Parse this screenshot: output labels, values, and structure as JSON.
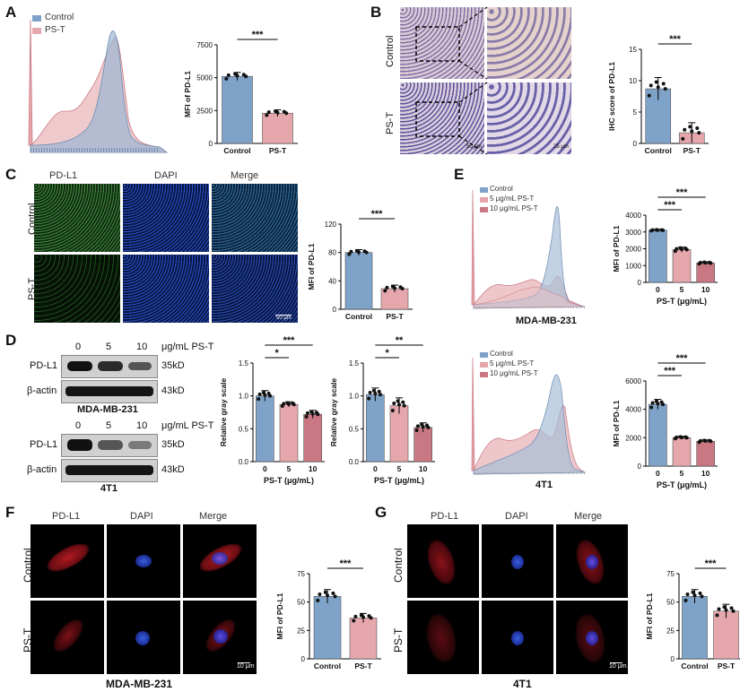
{
  "panels": {
    "A": "A",
    "B": "B",
    "C": "C",
    "D": "D",
    "E": "E",
    "F": "F",
    "G": "G"
  },
  "labels": {
    "control": "Control",
    "pst": "PS-T",
    "pdl1": "PD-L1",
    "dapi": "DAPI",
    "merge": "Merge",
    "mda": "MDA-MB-231",
    "t41": "4T1",
    "scale50": "50 μm",
    "scale25": "25 μm",
    "scale10": "10 μm",
    "ugml_pst": "μg/mL PS-T",
    "kd35": "35kD",
    "kd43": "43kD",
    "actin": "β-actin",
    "conc0": "0",
    "conc5": "5",
    "conc10": "10",
    "leg_ctrl": "Control",
    "leg_5": "5 μg/mL PS-T",
    "leg_10": "10 μg/mL PS-T"
  },
  "colors": {
    "blue": "#7ea2c8",
    "pink": "#e6a7ac",
    "red": "#c97782",
    "salmon": "#e4a4a9"
  },
  "chart_data": [
    {
      "id": "A",
      "type": "bar",
      "categories": [
        "Control",
        "PS-T"
      ],
      "values": [
        5100,
        2300
      ],
      "errors": [
        300,
        250
      ],
      "ylabel": "MFI of PD-L1",
      "ylim": [
        0,
        7500
      ],
      "yticks": [
        0,
        2500,
        5000,
        7500
      ],
      "sig": [
        {
          "from": 0,
          "to": 1,
          "text": "***"
        }
      ]
    },
    {
      "id": "B",
      "type": "bar",
      "categories": [
        "Control",
        "PS-T"
      ],
      "values": [
        8.7,
        1.7
      ],
      "errors": [
        1.8,
        1.6
      ],
      "ylabel": "IHC score of PD-L1",
      "ylim": [
        0,
        15
      ],
      "yticks": [
        0,
        5,
        10,
        15
      ],
      "sig": [
        {
          "from": 0,
          "to": 1,
          "text": "***"
        }
      ]
    },
    {
      "id": "C",
      "type": "bar",
      "categories": [
        "Control",
        "PS-T"
      ],
      "values": [
        80,
        29
      ],
      "errors": [
        4,
        5
      ],
      "ylabel": "MFI of PD-L1",
      "ylim": [
        0,
        120
      ],
      "yticks": [
        0,
        40,
        80,
        120
      ],
      "sig": [
        {
          "from": 0,
          "to": 1,
          "text": "***"
        }
      ]
    },
    {
      "id": "E1",
      "type": "bar",
      "categories": [
        "0",
        "5",
        "10"
      ],
      "values": [
        3100,
        1950,
        1150
      ],
      "errors": [
        40,
        150,
        70
      ],
      "xlabel": "PS-T (μg/mL)",
      "ylabel": "MFI of PD-L1",
      "ylim": [
        0,
        4000
      ],
      "yticks": [
        0,
        1000,
        2000,
        3000,
        4000
      ],
      "sig": [
        {
          "from": 0,
          "to": 1,
          "text": "***"
        },
        {
          "from": 0,
          "to": 2,
          "text": "***"
        }
      ]
    },
    {
      "id": "E2",
      "type": "bar",
      "categories": [
        "0",
        "5",
        "10"
      ],
      "values": [
        4350,
        2000,
        1750
      ],
      "errors": [
        350,
        100,
        100
      ],
      "xlabel": "PS-T (μg/mL)",
      "ylabel": "MFI of PD-L1",
      "ylim": [
        0,
        6000
      ],
      "yticks": [
        0,
        2000,
        4000,
        6000
      ],
      "sig": [
        {
          "from": 0,
          "to": 1,
          "text": "***"
        },
        {
          "from": 0,
          "to": 2,
          "text": "***"
        }
      ]
    },
    {
      "id": "D1",
      "type": "bar",
      "categories": [
        "0",
        "5",
        "10"
      ],
      "values": [
        1.0,
        0.87,
        0.72
      ],
      "errors": [
        0.08,
        0.04,
        0.06
      ],
      "xlabel": "PS-T (μg/mL)",
      "ylabel": "Relative gray scale",
      "ylim": [
        0,
        1.5
      ],
      "yticks": [
        0.0,
        0.5,
        1.0,
        1.5
      ],
      "sig": [
        {
          "from": 0,
          "to": 1,
          "text": "*"
        },
        {
          "from": 0,
          "to": 2,
          "text": "***"
        }
      ]
    },
    {
      "id": "D2",
      "type": "bar",
      "categories": [
        "0",
        "5",
        "10"
      ],
      "values": [
        1.02,
        0.85,
        0.52
      ],
      "errors": [
        0.1,
        0.12,
        0.07
      ],
      "xlabel": "PS-T (μg/mL)",
      "ylabel": "Relative gray scale",
      "ylim": [
        0,
        1.5
      ],
      "yticks": [
        0.0,
        0.5,
        1.0,
        1.5
      ],
      "sig": [
        {
          "from": 0,
          "to": 1,
          "text": "*"
        },
        {
          "from": 0,
          "to": 2,
          "text": "**"
        }
      ]
    },
    {
      "id": "F",
      "type": "bar",
      "categories": [
        "Control",
        "PS-T"
      ],
      "values": [
        55,
        36
      ],
      "errors": [
        6,
        4
      ],
      "ylabel": "MFI of PD-L1",
      "ylim": [
        0,
        75
      ],
      "yticks": [
        0,
        25,
        50,
        75
      ],
      "sig": [
        {
          "from": 0,
          "to": 1,
          "text": "***"
        }
      ]
    },
    {
      "id": "G",
      "type": "bar",
      "categories": [
        "Control",
        "PS-T"
      ],
      "values": [
        55,
        42
      ],
      "errors": [
        6,
        6
      ],
      "ylabel": "MFI of PD-L1",
      "ylim": [
        0,
        75
      ],
      "yticks": [
        0,
        25,
        50,
        75
      ],
      "sig": [
        {
          "from": 0,
          "to": 1,
          "text": "***"
        }
      ]
    }
  ]
}
